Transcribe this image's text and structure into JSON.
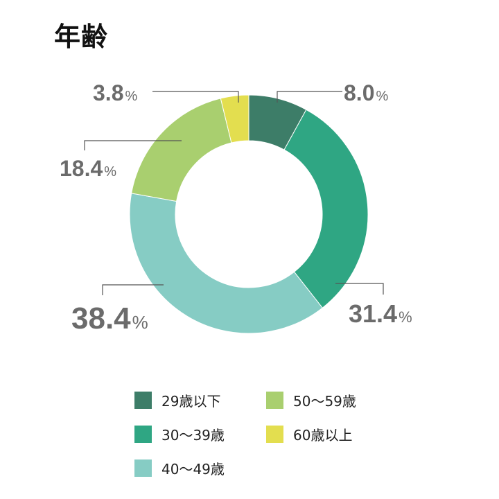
{
  "chart_data": {
    "type": "pie",
    "title": "年齢",
    "categories": [
      "29歳以下",
      "30〜39歳",
      "40〜49歳",
      "50〜59歳",
      "60歳以上"
    ],
    "values": [
      8.0,
      31.4,
      38.4,
      18.4,
      3.8
    ],
    "value_labels": [
      "8.0",
      "31.4",
      "38.4",
      "18.4",
      "3.8"
    ],
    "unit": "%",
    "colors": [
      "#3d7d68",
      "#2fa683",
      "#86ccc4",
      "#a9cf6f",
      "#e3de4f"
    ],
    "legend_position": "bottom"
  },
  "legend_order": [
    0,
    3,
    1,
    4,
    2
  ]
}
